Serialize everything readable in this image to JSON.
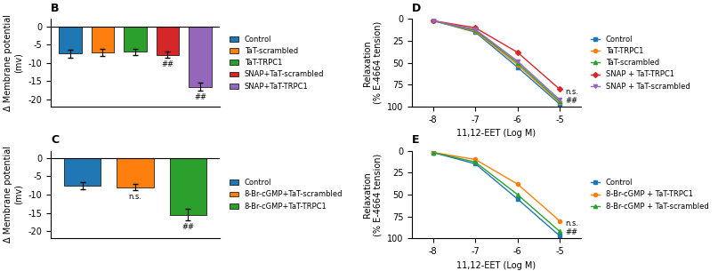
{
  "chart_data": [
    {
      "type": "bar",
      "title": "B",
      "categories": [
        "Control",
        "TaT-scrambled",
        "TaT-TRPC1",
        "SNAP+TaT-scrambled",
        "SNAP+TaT-TRPC1"
      ],
      "values": [
        -7.5,
        -7.2,
        -7.0,
        -7.8,
        -16.5
      ],
      "errors": [
        1.0,
        1.0,
        0.8,
        0.8,
        1.2
      ],
      "ylabel": "Δ Membrane potential\n(mv)",
      "ylim": [
        -22,
        2
      ],
      "yticks": [
        0,
        -5,
        -10,
        -15,
        -20
      ],
      "tick_labels": "y",
      "legend": "outside right",
      "annotations": [
        {
          "text": "##",
          "category": "SNAP+TaT-scrambled"
        },
        {
          "text": "##",
          "category": "SNAP+TaT-TRPC1"
        }
      ]
    },
    {
      "type": "bar",
      "title": "C",
      "categories": [
        "Control",
        "8-Br-cGMP+TaT-scrambled",
        "8-Br-cGMP+TaT-TRPC1"
      ],
      "values": [
        -7.5,
        -8.0,
        -15.5
      ],
      "errors": [
        1.0,
        0.8,
        1.5
      ],
      "ylabel": "Δ Membrane potential\n(mv)",
      "ylim": [
        -22,
        2
      ],
      "yticks": [
        0,
        -5,
        -10,
        -15,
        -20
      ],
      "tick_labels": "y",
      "legend": "outside right",
      "annotations": [
        {
          "text": "n.s.",
          "category": "8-Br-cGMP+TaT-scrambled"
        },
        {
          "text": "##",
          "category": "8-Br-cGMP+TaT-TRPC1"
        }
      ]
    },
    {
      "type": "line",
      "title": "D",
      "x": [
        -8,
        -7,
        -6,
        -5
      ],
      "series": [
        {
          "name": "Control",
          "values": [
            2,
            15,
            55,
            97
          ],
          "marker": "square"
        },
        {
          "name": "TaT-TRPC1",
          "values": [
            2,
            14,
            52,
            95
          ],
          "marker": "circle"
        },
        {
          "name": "TaT-scrambled",
          "values": [
            2,
            13,
            50,
            94
          ],
          "marker": "triangle_up"
        },
        {
          "name": "SNAP + TaT-TRPC1",
          "values": [
            2,
            10,
            38,
            80
          ],
          "marker": "diamond"
        },
        {
          "name": "SNAP + TaT-scrambled",
          "values": [
            2,
            12,
            48,
            92
          ],
          "marker": "triangle_down"
        }
      ],
      "xlabel": "11,12-EET (Log M)",
      "ylabel": "Relaxation\n(% E-4664 tension)",
      "xlim": [
        -8.5,
        -4.5
      ],
      "xticks": [
        -8,
        -7,
        -6,
        -5
      ],
      "ylim": [
        100,
        0
      ],
      "yticks": [
        0,
        25,
        50,
        75,
        100
      ],
      "legend": "outside right",
      "annotations": [
        {
          "text": "n.s.",
          "x": -5.05,
          "y": 83
        },
        {
          "text": "##",
          "x": -5.05,
          "y": 93
        }
      ]
    },
    {
      "type": "line",
      "title": "E",
      "x": [
        -8,
        -7,
        -6,
        -5
      ],
      "series": [
        {
          "name": "Control",
          "values": [
            2,
            15,
            55,
            97
          ],
          "marker": "square"
        },
        {
          "name": "8-Br-cGMP + TaT-TRPC1",
          "values": [
            2,
            10,
            38,
            80
          ],
          "marker": "circle"
        },
        {
          "name": "8-Br-cGMP + TaT-scrambled",
          "values": [
            2,
            13,
            50,
            92
          ],
          "marker": "triangle_up"
        }
      ],
      "xlabel": "11,12-EET (Log M)",
      "ylabel": "Relaxation\n(% E-4664 tension)",
      "xlim": [
        -8.5,
        -4.5
      ],
      "xticks": [
        -8,
        -7,
        -6,
        -5
      ],
      "ylim": [
        100,
        0
      ],
      "yticks": [
        0,
        25,
        50,
        75,
        100
      ],
      "legend": "outside right",
      "annotations": [
        {
          "text": "n.s.",
          "x": -5.05,
          "y": 83
        },
        {
          "text": "##",
          "x": -5.05,
          "y": 93
        }
      ]
    }
  ]
}
